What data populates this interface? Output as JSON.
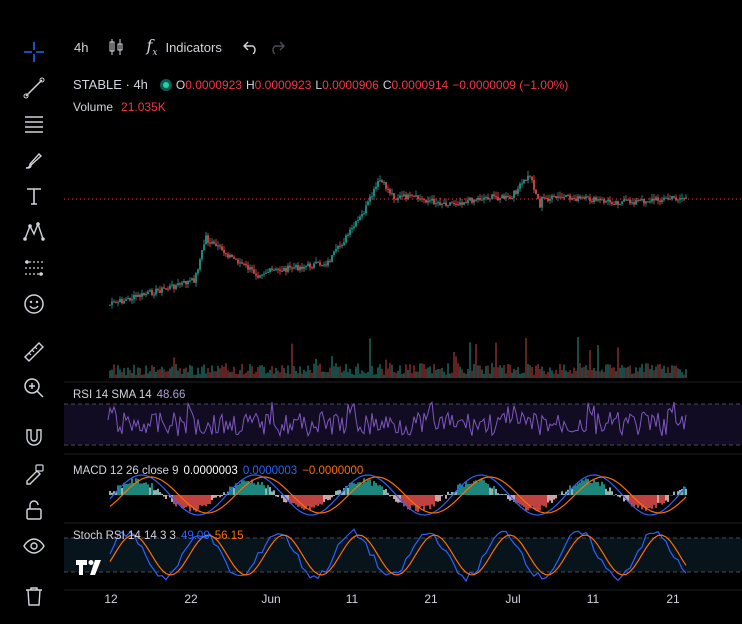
{
  "topbar": {
    "interval": "4h",
    "indicators_label": "Indicators"
  },
  "left_tools": [
    "crosshair-icon",
    "trendline-icon",
    "fib-icon",
    "brush-icon",
    "text-icon",
    "pattern-icon",
    "prediction-icon",
    "emoji-icon",
    "ruler-icon",
    "zoom-in-icon",
    "magnet-icon",
    "lock-drawing-icon",
    "unlock-icon",
    "eye-icon",
    "trash-icon"
  ],
  "legend": {
    "symbol": "STABLE · 4h",
    "o_label": "O",
    "o": "0.0000923",
    "h_label": "H",
    "h": "0.0000923",
    "l_label": "L",
    "l": "0.0000906",
    "c_label": "C",
    "c": "0.0000914",
    "change": "−0.0000009 (−1.00%)",
    "volume_label": "Volume",
    "volume": "21.035K"
  },
  "rsi": {
    "label": "RSI 14 SMA 14",
    "value": "48.66"
  },
  "macd": {
    "label": "MACD 12 26 close 9",
    "v1": "0.0000003",
    "v2": "0.0000003",
    "v3": "−0.0000000"
  },
  "stoch": {
    "label": "Stoch RSI 14 14 3 3",
    "k": "49.00",
    "d": "56.15"
  },
  "xaxis": [
    "12",
    "22",
    "Jun",
    "11",
    "21",
    "Jul",
    "11",
    "21"
  ],
  "colors": {
    "up": "#26a69a",
    "down": "#ef5350",
    "rsi": "#7e57c2",
    "macd": "#2962ff",
    "signal": "#ff6d00",
    "stoch_k": "#2962ff",
    "stoch_d": "#ff6d00"
  }
}
